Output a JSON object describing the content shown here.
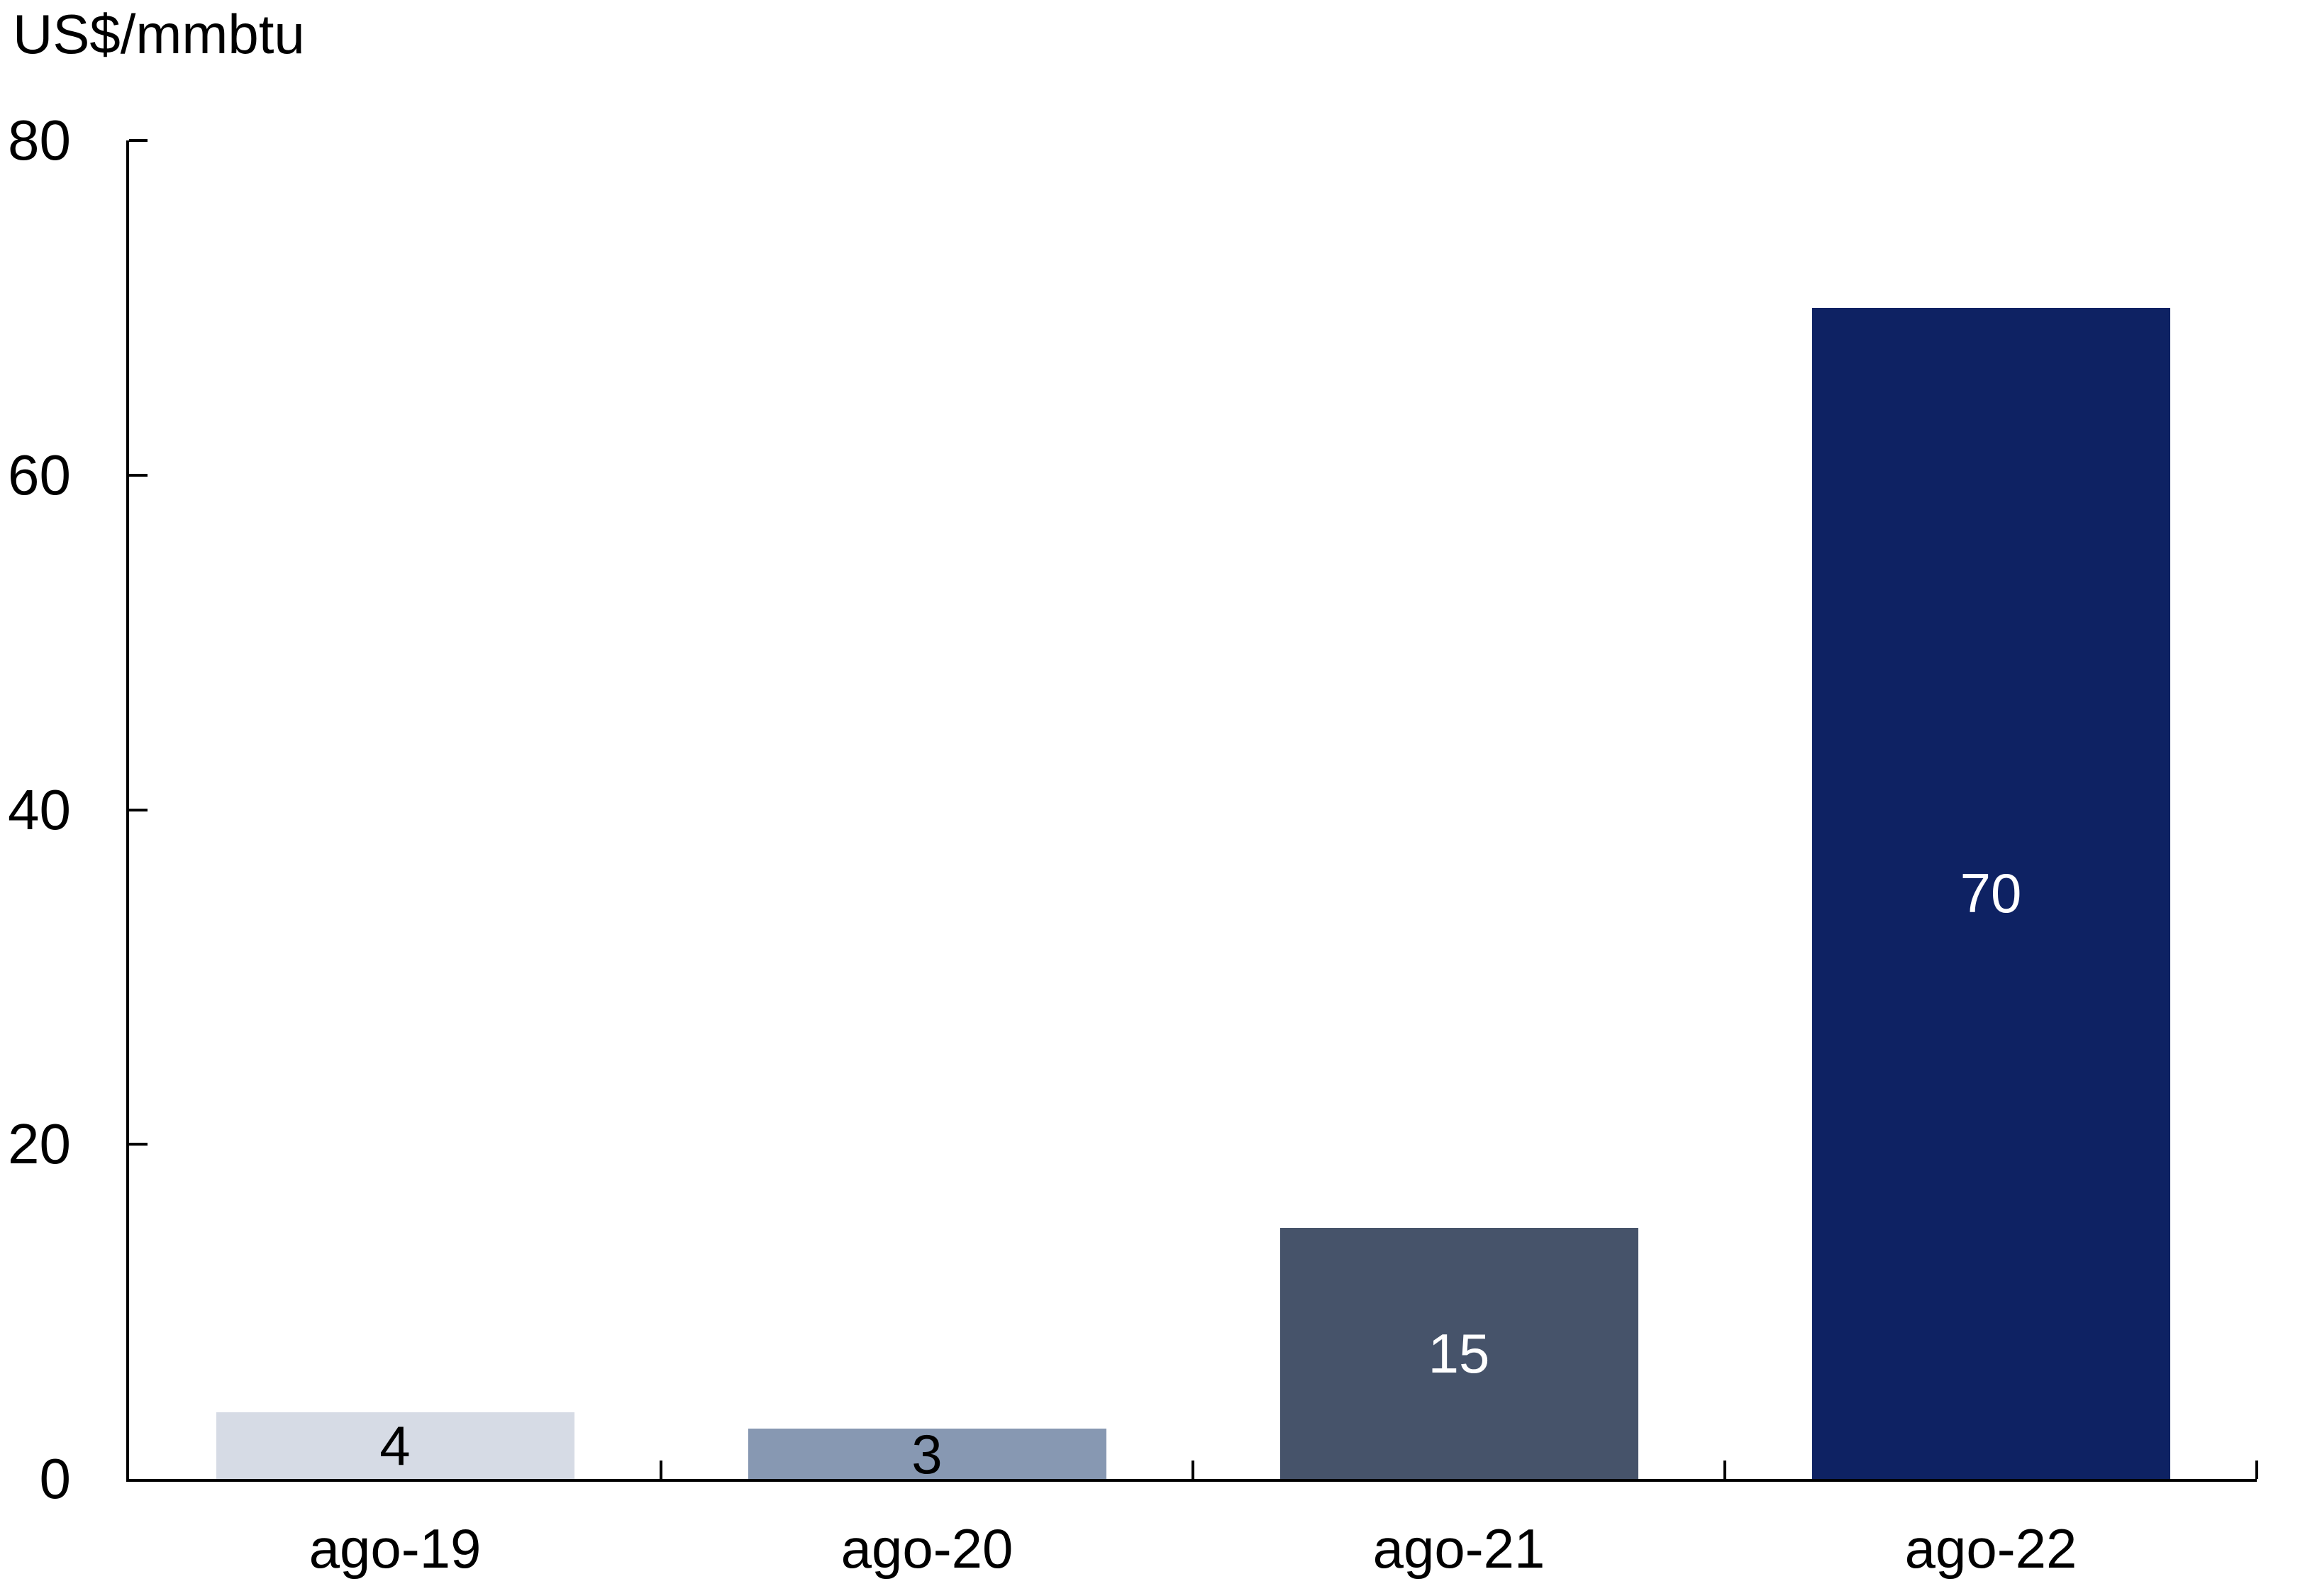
{
  "chart_data": {
    "type": "bar",
    "title": "",
    "ylabel": "US$/mmbtu",
    "xlabel": "",
    "categories": [
      "ago-19",
      "ago-20",
      "ago-21",
      "ago-22"
    ],
    "values": [
      4,
      3,
      15,
      70
    ],
    "value_labels": [
      "4",
      "3",
      "15",
      "70"
    ],
    "bar_colors": [
      "#d6dbe5",
      "#8798b2",
      "#46536a",
      "#0e2263"
    ],
    "value_label_colors": [
      "#000000",
      "#000000",
      "#ffffff",
      "#ffffff"
    ],
    "y_axis": {
      "min": 0,
      "max": 80,
      "tick_step": 20,
      "tick_labels": [
        "0",
        "20",
        "40",
        "60",
        "80"
      ]
    },
    "axis_color": "#000000",
    "grid": false,
    "legend_position": "none",
    "data_label_position": "inside-center",
    "tick_direction": "inside"
  }
}
